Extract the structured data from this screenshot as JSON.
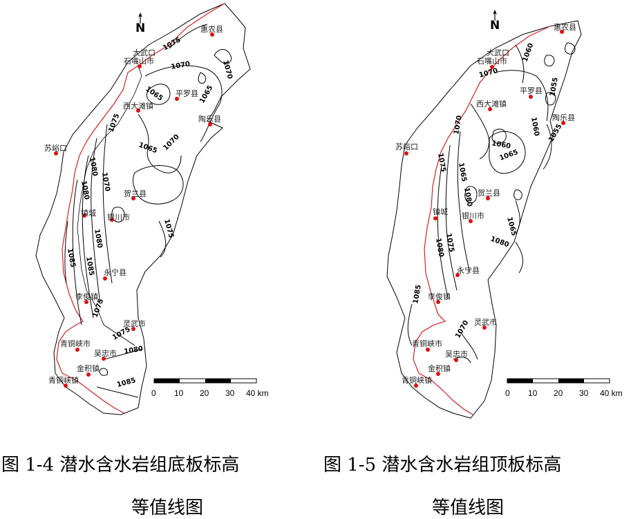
{
  "maps": [
    {
      "north_label": "N",
      "places": [
        "惠农县",
        "大武口",
        "石嘴山市",
        "平罗县",
        "西大滩镇",
        "陶乐县",
        "苏峪口",
        "贺兰县",
        "镇城",
        "银川市",
        "永宁县",
        "李俊镇",
        "灵武市",
        "青铜峡市",
        "吴忠市",
        "金积镇",
        "青铜峡镇"
      ],
      "contour_labels": [
        "1075",
        "1070",
        "1070",
        "1065",
        "1065",
        "1075",
        "1065",
        "1070",
        "1080",
        "1070",
        "1080",
        "1080",
        "1075",
        "1085",
        "1085",
        "1075",
        "1075",
        "1080",
        "1085"
      ],
      "scale": {
        "ticks": [
          "0",
          "10",
          "20",
          "30",
          "40 km"
        ]
      },
      "caption_line1": "图 1-4   潜水含水岩组底板标高",
      "caption_line2": "等值线图"
    },
    {
      "north_label": "N",
      "places": [
        "惠农县",
        "大武口",
        "石嘴山市",
        "平罗县",
        "西大滩镇",
        "陶乐县",
        "苏峪口",
        "贺兰县",
        "镇城",
        "银川市",
        "永宁县",
        "李俊镇",
        "灵武市",
        "青铜峡市",
        "吴忠市",
        "金积镇",
        "青铜峡镇"
      ],
      "contour_labels": [
        "1060",
        "1070",
        "1055",
        "1060",
        "1070",
        "1060",
        "1065",
        "1055",
        "1075",
        "1065",
        "1080",
        "1080",
        "1075",
        "1065",
        "1080",
        "1085",
        "1070"
      ],
      "scale": {
        "ticks": [
          "0",
          "10",
          "20",
          "30",
          "40 km"
        ]
      },
      "caption_line1": "图 1-5   潜水含水岩组顶板标高",
      "caption_line2": "等值线图"
    }
  ],
  "colors": {
    "boundary": "#000000",
    "river": "#d42020",
    "city": "#e01010",
    "contour": "#000000"
  }
}
